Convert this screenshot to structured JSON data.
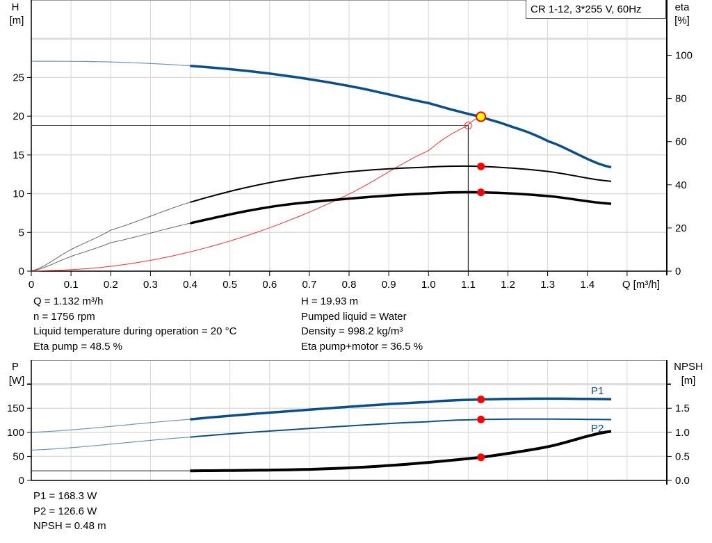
{
  "chart_data": [
    {
      "type": "line",
      "legend_box": "CR 1-12, 3*255 V, 60Hz",
      "xlabel": "Q [m³/h]",
      "ylabel_left": [
        "H",
        "[m]"
      ],
      "ylabel_right": [
        "eta",
        "[%]"
      ],
      "xlim": [
        0,
        1.6
      ],
      "ylim_left": [
        0,
        35
      ],
      "ylim_right": [
        0,
        125.6
      ],
      "x_ticks": [
        "0",
        "0.1",
        "0.2",
        "0.3",
        "0.4",
        "0.5",
        "0.6",
        "0.7",
        "0.8",
        "0.9",
        "1.0",
        "1.1",
        "1.2",
        "1.3",
        "1.4"
      ],
      "y_ticks_left": [
        "0",
        "5",
        "10",
        "15",
        "20",
        "25"
      ],
      "y_ticks_right": [
        "0",
        "20",
        "40",
        "60",
        "80",
        "100"
      ],
      "grid": true,
      "colors": {
        "head": "#0b4f8a",
        "eta": "#000000",
        "system": "#ff2a2a",
        "point": "#ff0000",
        "duty_fill": "#ffff00"
      },
      "series": [
        {
          "id": "head",
          "axis": "left",
          "x": [
            0,
            0.2,
            0.4,
            0.6,
            0.8,
            1.0,
            1.132,
            1.2,
            1.3,
            1.46
          ],
          "y": [
            27.1,
            27.0,
            26.5,
            25.5,
            23.9,
            21.7,
            19.93,
            18.8,
            16.8,
            13.4
          ],
          "op": 19.93
        },
        {
          "id": "eta_pump",
          "axis": "right",
          "x": [
            0,
            0.1,
            0.2,
            0.4,
            0.6,
            0.8,
            1.0,
            1.132,
            1.3,
            1.46
          ],
          "y": [
            0,
            10,
            19,
            31.9,
            41,
            46,
            48.2,
            48.5,
            46.2,
            41.6
          ],
          "op": 48.5
        },
        {
          "id": "eta_total",
          "axis": "right",
          "x": [
            0,
            0.1,
            0.2,
            0.4,
            0.6,
            0.8,
            1.0,
            1.132,
            1.3,
            1.46
          ],
          "y": [
            0,
            6.8,
            13.2,
            22.2,
            29.7,
            33.6,
            36,
            36.5,
            34.8,
            31.2
          ],
          "op": 36.5
        },
        {
          "id": "system",
          "axis": "left",
          "x": [
            0,
            0.2,
            0.4,
            0.6,
            0.8,
            1.0,
            1.1,
            1.132
          ],
          "y": [
            0,
            0.62,
            2.49,
            5.6,
            9.95,
            15.55,
            18.8,
            19.93
          ]
        }
      ],
      "duty_point": {
        "q": 1.132,
        "h": 19.93
      },
      "required_point": {
        "q": 1.1,
        "h": 18.8
      }
    },
    {
      "type": "line",
      "ylabel_left": [
        "P",
        "[W]"
      ],
      "ylabel_right": [
        "NPSH",
        "[m]"
      ],
      "xlim": [
        0,
        1.6
      ],
      "ylim_left": [
        0,
        250
      ],
      "ylim_right": [
        0,
        2.5
      ],
      "y_ticks_left": [
        "0",
        "50",
        "100",
        "150"
      ],
      "y_ticks_right": [
        "0.0",
        "0.5",
        "1.0",
        "1.5"
      ],
      "grid": true,
      "series": [
        {
          "name": "P1",
          "id": "p1",
          "axis": "left",
          "color": "#0b4f8a",
          "x": [
            0,
            0.4,
            0.7,
            1.0,
            1.132,
            1.3,
            1.46
          ],
          "y": [
            100,
            127,
            147,
            163,
            168.3,
            170,
            169
          ],
          "op": 168.3
        },
        {
          "name": "P2",
          "id": "p2",
          "axis": "left",
          "color": "#0b4f8a",
          "x": [
            0,
            0.4,
            0.7,
            1.0,
            1.132,
            1.3,
            1.46
          ],
          "y": [
            63,
            90,
            108,
            122,
            126.6,
            127.5,
            126.5
          ],
          "op": 126.6
        },
        {
          "id": "npsh",
          "axis": "right",
          "color": "#000000",
          "x": [
            0,
            0.4,
            0.7,
            0.9,
            1.132,
            1.3,
            1.46
          ],
          "y": [
            0.2,
            0.2,
            0.23,
            0.31,
            0.48,
            0.7,
            1.02
          ],
          "op": 0.48
        }
      ]
    }
  ],
  "info": {
    "left": [
      "Q = 1.132 m³/h",
      "n = 1756 rpm",
      "Liquid temperature during operation = 20 °C",
      "Eta pump = 48.5 %"
    ],
    "right": [
      "H = 19.93 m",
      "Pumped liquid = Water",
      "Density = 998.2 kg/m³",
      "Eta pump+motor = 36.5 %"
    ],
    "bottom": [
      "P1 = 168.3 W",
      "P2 = 126.6 W",
      "NPSH = 0.48 m"
    ]
  }
}
